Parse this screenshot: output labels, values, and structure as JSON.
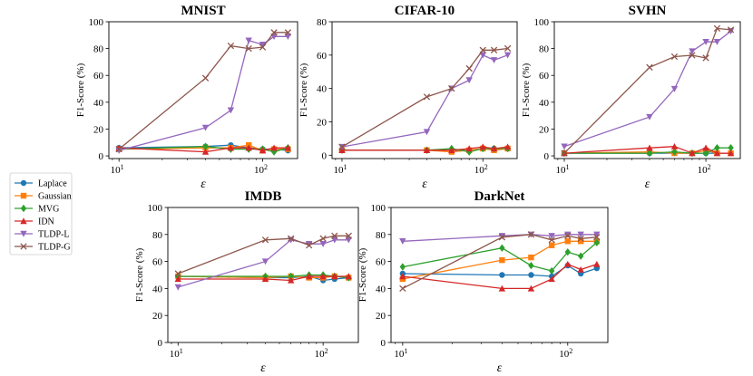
{
  "legend": [
    {
      "name": "Laplace",
      "color": "#1f77b4",
      "marker": "circle"
    },
    {
      "name": "Gaussian",
      "color": "#ff7f0e",
      "marker": "square"
    },
    {
      "name": "MVG",
      "color": "#2ca02c",
      "marker": "diamond"
    },
    {
      "name": "IDN",
      "color": "#d62728",
      "marker": "triangle-up"
    },
    {
      "name": "TLDP-L",
      "color": "#9467bd",
      "marker": "triangle-down"
    },
    {
      "name": "TLDP-G",
      "color": "#8c564b",
      "marker": "x"
    }
  ],
  "chart_data": [
    {
      "type": "line",
      "title": "MNIST",
      "xscale": "log",
      "xlim": [
        8.5,
        175
      ],
      "ylim": [
        -2,
        100
      ],
      "xlabel": "ε",
      "ylabel": "F1-Score (%)",
      "xticks": [
        {
          "value": 10,
          "label": "10",
          "sup": "1"
        },
        {
          "value": 100,
          "label": "10",
          "sup": "2"
        }
      ],
      "yticks": [
        0,
        20,
        40,
        60,
        80,
        100
      ],
      "series": [
        {
          "name": "Laplace",
          "x": [
            10,
            40,
            60,
            80,
            100,
            120,
            150
          ],
          "y": [
            6,
            7,
            8,
            6,
            5,
            5,
            4
          ]
        },
        {
          "name": "Gaussian",
          "x": [
            10,
            40,
            60,
            80,
            100,
            120,
            150
          ],
          "y": [
            5,
            6,
            6,
            8,
            4,
            5,
            5
          ]
        },
        {
          "name": "MVG",
          "x": [
            10,
            40,
            60,
            80,
            100,
            120,
            150
          ],
          "y": [
            5,
            7,
            5,
            5,
            5,
            3,
            6
          ]
        },
        {
          "name": "IDN",
          "x": [
            10,
            40,
            60,
            80,
            100,
            120,
            150
          ],
          "y": [
            6,
            3,
            6,
            6,
            4,
            6,
            6
          ]
        },
        {
          "name": "TLDP-L",
          "x": [
            10,
            40,
            60,
            80,
            100,
            120,
            150
          ],
          "y": [
            4,
            21,
            34,
            86,
            83,
            89,
            89
          ]
        },
        {
          "name": "TLDP-G",
          "x": [
            10,
            40,
            60,
            80,
            100,
            120,
            150
          ],
          "y": [
            5,
            58,
            82,
            80,
            81,
            92,
            92
          ]
        }
      ]
    },
    {
      "type": "line",
      "title": "CIFAR-10",
      "xscale": "log",
      "xlim": [
        8.5,
        175
      ],
      "ylim": [
        -2,
        80
      ],
      "xlabel": "ε",
      "ylabel": "F1-Score (%)",
      "xticks": [
        {
          "value": 10,
          "label": "10",
          "sup": "1"
        },
        {
          "value": 100,
          "label": "10",
          "sup": "2"
        }
      ],
      "yticks": [
        0,
        20,
        40,
        60,
        80
      ],
      "series": [
        {
          "name": "Laplace",
          "x": [
            10,
            40,
            60,
            80,
            100,
            120,
            150
          ],
          "y": [
            3,
            3,
            3,
            3,
            4,
            4,
            4
          ]
        },
        {
          "name": "Gaussian",
          "x": [
            10,
            40,
            60,
            80,
            100,
            120,
            150
          ],
          "y": [
            3,
            3,
            2,
            3,
            4,
            3,
            4
          ]
        },
        {
          "name": "MVG",
          "x": [
            10,
            40,
            60,
            80,
            100,
            120,
            150
          ],
          "y": [
            3,
            3,
            4,
            2,
            4,
            4,
            4
          ]
        },
        {
          "name": "IDN",
          "x": [
            10,
            40,
            60,
            80,
            100,
            120,
            150
          ],
          "y": [
            3,
            3,
            3,
            4,
            5,
            4,
            5
          ]
        },
        {
          "name": "TLDP-L",
          "x": [
            10,
            40,
            60,
            80,
            100,
            120,
            150
          ],
          "y": [
            5,
            14,
            40,
            45,
            60,
            57,
            60
          ]
        },
        {
          "name": "TLDP-G",
          "x": [
            10,
            40,
            60,
            80,
            100,
            120,
            150
          ],
          "y": [
            5,
            35,
            40,
            52,
            63,
            63,
            64
          ]
        }
      ]
    },
    {
      "type": "line",
      "title": "SVHN",
      "xscale": "log",
      "xlim": [
        8.5,
        175
      ],
      "ylim": [
        -2,
        100
      ],
      "xlabel": "ε",
      "ylabel": "F1-Score (%)",
      "xticks": [
        {
          "value": 10,
          "label": "10",
          "sup": "1"
        },
        {
          "value": 100,
          "label": "10",
          "sup": "2"
        }
      ],
      "yticks": [
        0,
        20,
        40,
        60,
        80,
        100
      ],
      "series": [
        {
          "name": "Laplace",
          "x": [
            10,
            40,
            60,
            80,
            100,
            120,
            150
          ],
          "y": [
            2,
            2,
            2,
            2,
            2,
            2,
            2
          ]
        },
        {
          "name": "Gaussian",
          "x": [
            10,
            40,
            60,
            80,
            100,
            120,
            150
          ],
          "y": [
            2,
            3,
            2,
            2,
            4,
            2,
            2
          ]
        },
        {
          "name": "MVG",
          "x": [
            10,
            40,
            60,
            80,
            100,
            120,
            150
          ],
          "y": [
            2,
            2,
            3,
            2,
            2,
            6,
            6
          ]
        },
        {
          "name": "IDN",
          "x": [
            10,
            40,
            60,
            80,
            100,
            120,
            150
          ],
          "y": [
            2,
            6,
            7,
            2,
            6,
            2,
            2
          ]
        },
        {
          "name": "TLDP-L",
          "x": [
            10,
            40,
            60,
            80,
            100,
            120,
            150
          ],
          "y": [
            7,
            29,
            50,
            78,
            85,
            85,
            93
          ]
        },
        {
          "name": "TLDP-G",
          "x": [
            10,
            40,
            60,
            80,
            100,
            120,
            150
          ],
          "y": [
            2,
            66,
            74,
            75,
            73,
            95,
            94
          ]
        }
      ]
    },
    {
      "type": "line",
      "title": "IMDB",
      "xscale": "log",
      "xlim": [
        8.5,
        175
      ],
      "ylim": [
        0,
        100
      ],
      "xlabel": "ε",
      "ylabel": "F1-Score (%)",
      "xticks": [
        {
          "value": 10,
          "label": "10",
          "sup": "1"
        },
        {
          "value": 100,
          "label": "10",
          "sup": "2"
        }
      ],
      "yticks": [
        0,
        20,
        40,
        60,
        80,
        100
      ],
      "series": [
        {
          "name": "Laplace",
          "x": [
            10,
            40,
            60,
            80,
            100,
            120,
            150
          ],
          "y": [
            49,
            48,
            48,
            49,
            46,
            47,
            48
          ]
        },
        {
          "name": "Gaussian",
          "x": [
            10,
            40,
            60,
            80,
            100,
            120,
            150
          ],
          "y": [
            49,
            48,
            49,
            48,
            48,
            49,
            48
          ]
        },
        {
          "name": "MVG",
          "x": [
            10,
            40,
            60,
            80,
            100,
            120,
            150
          ],
          "y": [
            49,
            49,
            49,
            50,
            50,
            49,
            48
          ]
        },
        {
          "name": "IDN",
          "x": [
            10,
            40,
            60,
            80,
            100,
            120,
            150
          ],
          "y": [
            47,
            47,
            46,
            49,
            49,
            49,
            49
          ]
        },
        {
          "name": "TLDP-L",
          "x": [
            10,
            40,
            60,
            80,
            100,
            120,
            150
          ],
          "y": [
            41,
            60,
            76,
            73,
            73,
            76,
            76
          ]
        },
        {
          "name": "TLDP-G",
          "x": [
            10,
            40,
            60,
            80,
            100,
            120,
            150
          ],
          "y": [
            51,
            76,
            77,
            72,
            77,
            79,
            79
          ]
        }
      ]
    },
    {
      "type": "line",
      "title": "DarkNet",
      "xscale": "log",
      "xlim": [
        8.5,
        175
      ],
      "ylim": [
        0,
        100
      ],
      "xlabel": "ε",
      "ylabel": "F1-Score (%)",
      "xticks": [
        {
          "value": 10,
          "label": "10",
          "sup": "1"
        },
        {
          "value": 100,
          "label": "10",
          "sup": "2"
        }
      ],
      "yticks": [
        0,
        20,
        40,
        60,
        80,
        100
      ],
      "series": [
        {
          "name": "Laplace",
          "x": [
            10,
            40,
            60,
            80,
            100,
            120,
            150
          ],
          "y": [
            51,
            50,
            50,
            49,
            57,
            51,
            55
          ]
        },
        {
          "name": "Gaussian",
          "x": [
            10,
            40,
            60,
            80,
            100,
            120,
            150
          ],
          "y": [
            47,
            61,
            63,
            72,
            75,
            75,
            75
          ]
        },
        {
          "name": "MVG",
          "x": [
            10,
            40,
            60,
            80,
            100,
            120,
            150
          ],
          "y": [
            56,
            70,
            57,
            53,
            67,
            64,
            74
          ]
        },
        {
          "name": "IDN",
          "x": [
            10,
            40,
            60,
            80,
            100,
            120,
            150
          ],
          "y": [
            49,
            40,
            40,
            47,
            58,
            54,
            58
          ]
        },
        {
          "name": "TLDP-L",
          "x": [
            10,
            40,
            60,
            80,
            100,
            120,
            150
          ],
          "y": [
            75,
            79,
            80,
            79,
            80,
            80,
            80
          ]
        },
        {
          "name": "TLDP-G",
          "x": [
            10,
            40,
            60,
            80,
            100,
            120,
            150
          ],
          "y": [
            40,
            78,
            80,
            76,
            79,
            77,
            78
          ]
        }
      ]
    }
  ]
}
